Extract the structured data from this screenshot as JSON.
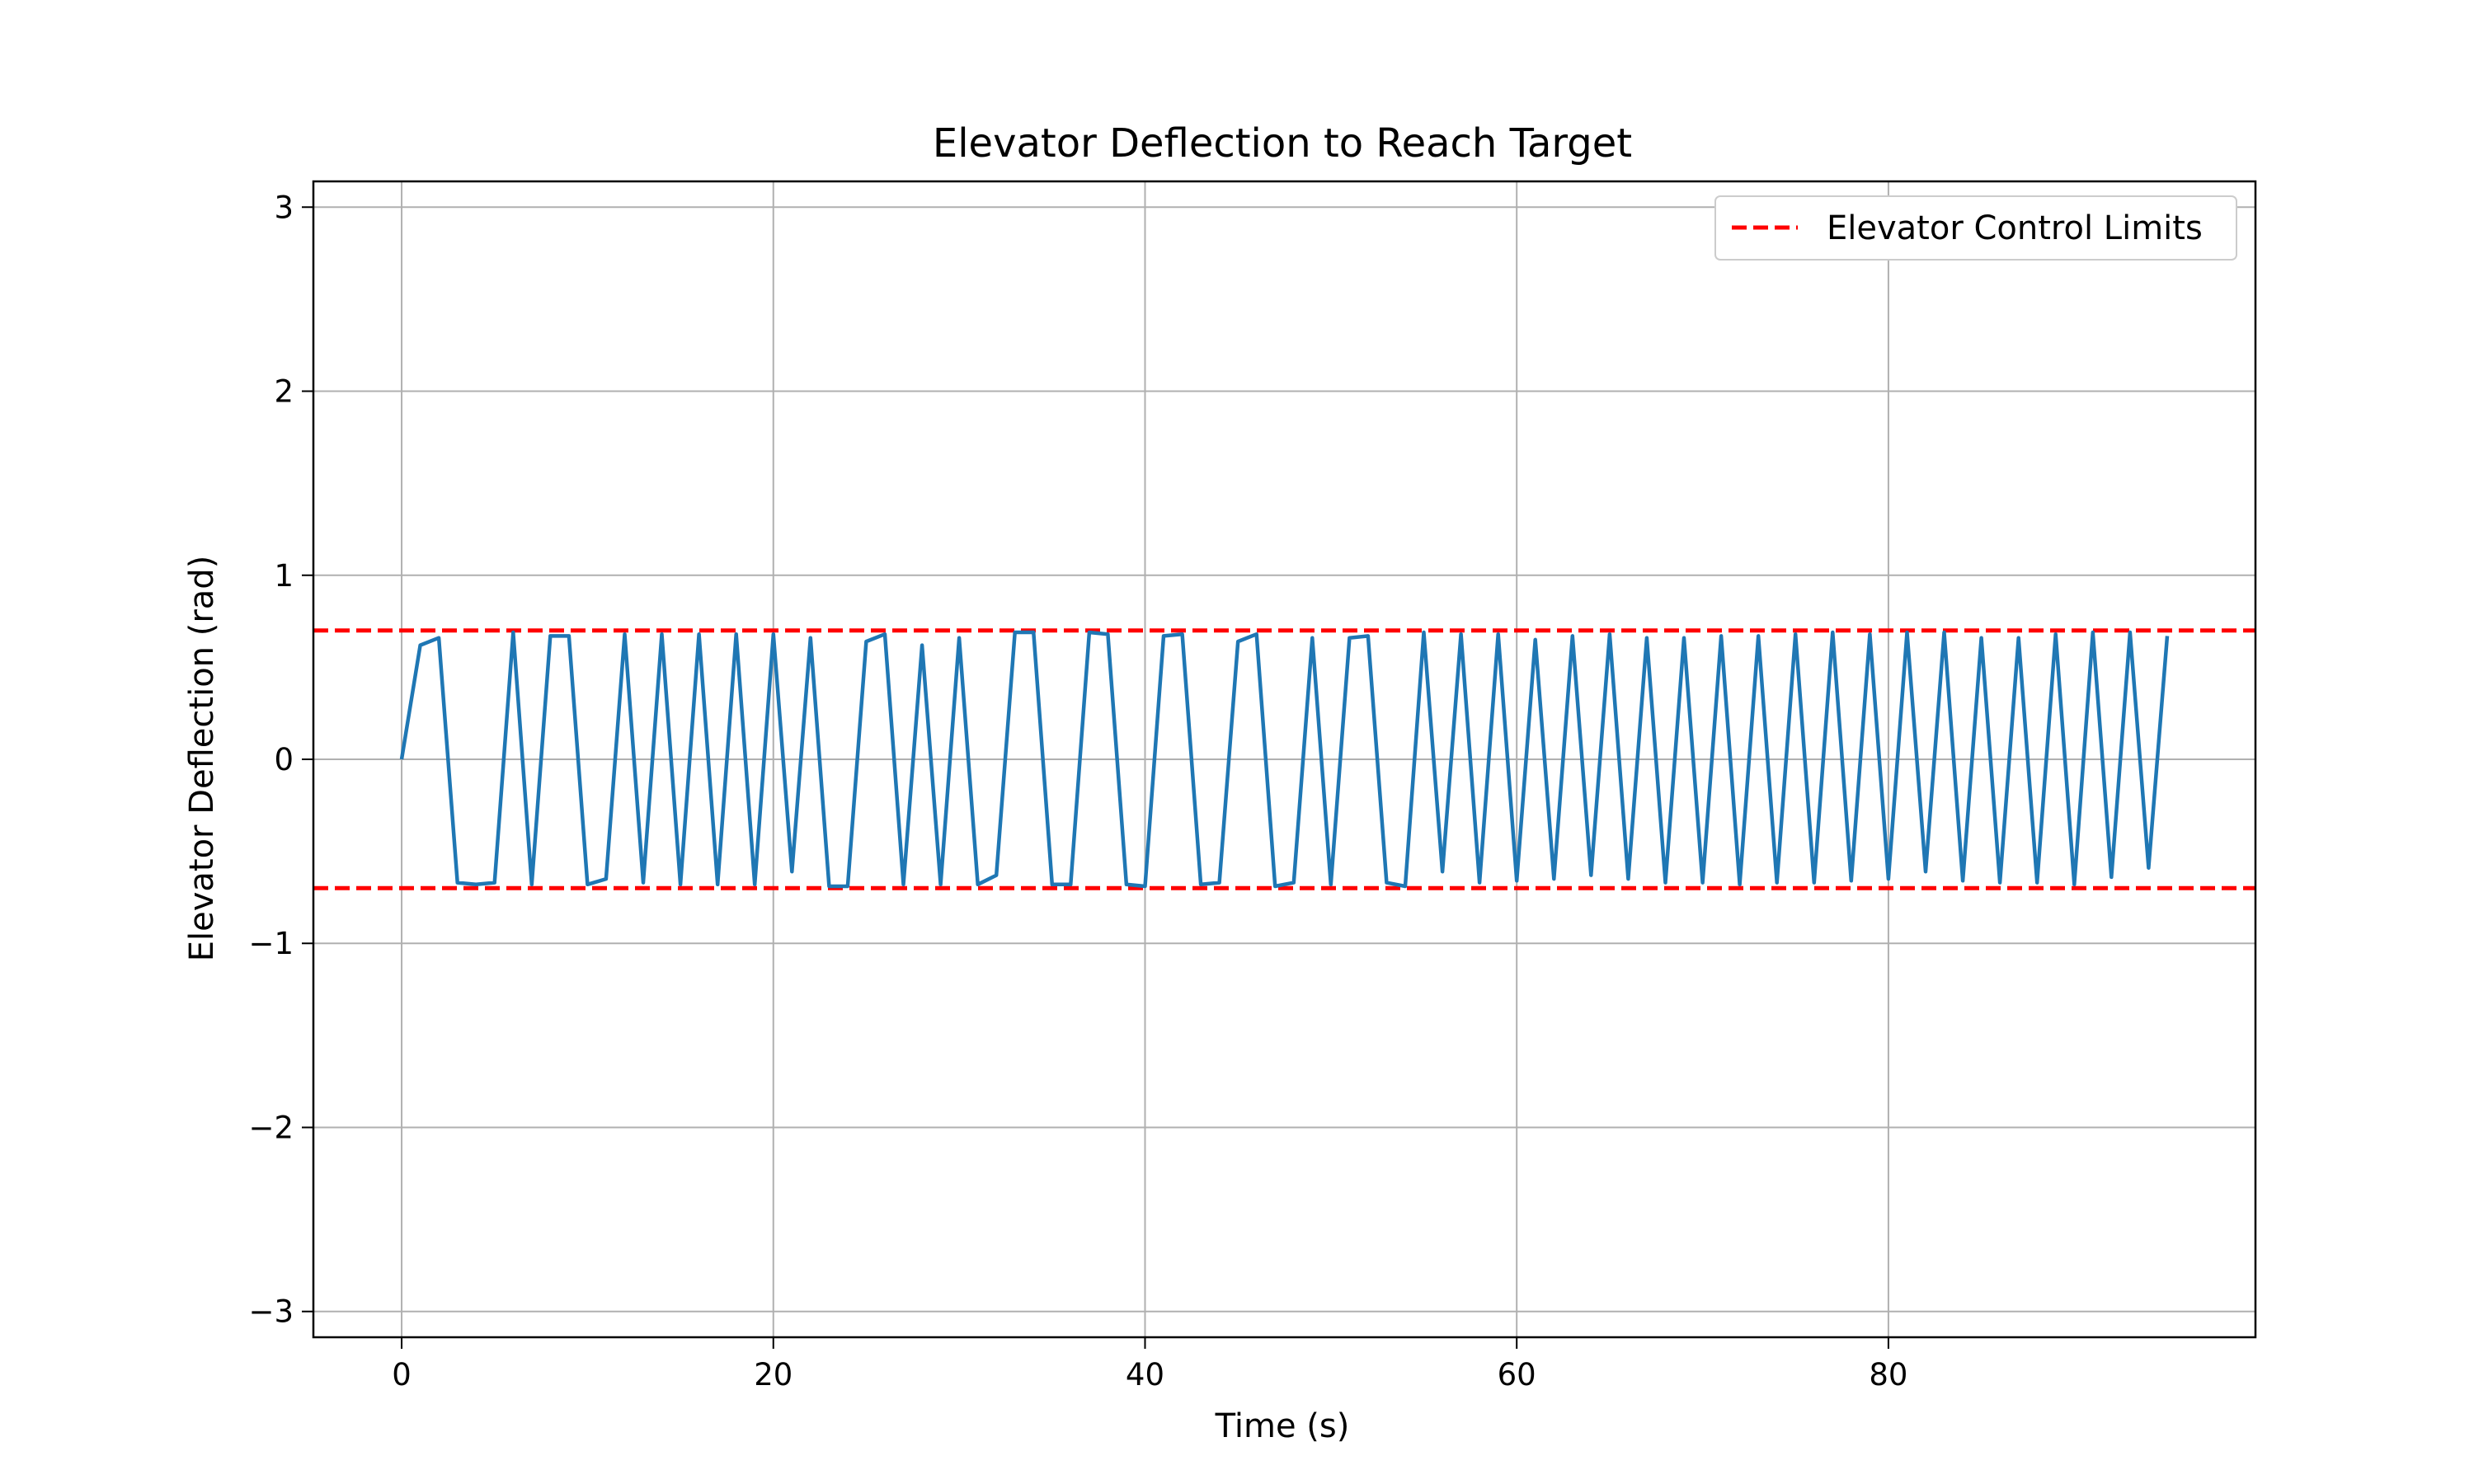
{
  "chart_data": {
    "type": "line",
    "title": "Elevator Deflection to Reach Target",
    "xlabel": "Time (s)",
    "ylabel": "Elevator Deflection (rad)",
    "xlim": [
      -4.75,
      99.75
    ],
    "ylim": [
      -3.14,
      3.14
    ],
    "xticks": [
      0,
      20,
      40,
      60,
      80
    ],
    "xtick_labels": [
      "0",
      "20",
      "40",
      "60",
      "80"
    ],
    "yticks": [
      -3,
      -2,
      -1,
      0,
      1,
      2,
      3
    ],
    "ytick_labels": [
      "−3",
      "−2",
      "−1",
      "0",
      "1",
      "2",
      "3"
    ],
    "grid": true,
    "legend_position": "top-right",
    "series": [
      {
        "color": "#1f77b4",
        "x": [
          0,
          1,
          2,
          3,
          4,
          5,
          6,
          7,
          8,
          9,
          10,
          11,
          12,
          13,
          14,
          15,
          16,
          17,
          18,
          19,
          20,
          21,
          22,
          23,
          24,
          25,
          26,
          27,
          28,
          29,
          30,
          31,
          32,
          33,
          34,
          35,
          36,
          37,
          38,
          39,
          40,
          41,
          42,
          43,
          44,
          45,
          46,
          47,
          48,
          49,
          50,
          51,
          52,
          53,
          54,
          55,
          56,
          57,
          58,
          59,
          60,
          61,
          62,
          63,
          64,
          65,
          66,
          67,
          68,
          69,
          70,
          71,
          72,
          73,
          74,
          75,
          76,
          77,
          78,
          79,
          80,
          81,
          82,
          83,
          84,
          85,
          86,
          87,
          88,
          89,
          90,
          91,
          92,
          93,
          94,
          95
        ],
        "y": [
          0,
          0.62,
          0.66,
          -0.67,
          -0.68,
          -0.67,
          0.69,
          -0.68,
          0.67,
          0.67,
          -0.68,
          -0.65,
          0.68,
          -0.67,
          0.68,
          -0.68,
          0.68,
          -0.68,
          0.68,
          -0.68,
          0.68,
          -0.61,
          0.66,
          -0.69,
          -0.69,
          0.64,
          0.68,
          -0.68,
          0.62,
          -0.68,
          0.66,
          -0.68,
          -0.63,
          0.69,
          0.69,
          -0.68,
          -0.68,
          0.69,
          0.68,
          -0.68,
          -0.69,
          0.67,
          0.68,
          -0.68,
          -0.67,
          0.64,
          0.68,
          -0.69,
          -0.67,
          0.66,
          -0.68,
          0.66,
          0.67,
          -0.67,
          -0.69,
          0.69,
          -0.61,
          0.68,
          -0.67,
          0.68,
          -0.66,
          0.65,
          -0.65,
          0.67,
          -0.63,
          0.68,
          -0.65,
          0.66,
          -0.67,
          0.66,
          -0.67,
          0.67,
          -0.68,
          0.67,
          -0.67,
          0.68,
          -0.67,
          0.69,
          -0.66,
          0.68,
          -0.65,
          0.69,
          -0.61,
          0.69,
          -0.66,
          0.66,
          -0.67,
          0.66,
          -0.67,
          0.68,
          -0.68,
          0.69,
          -0.64,
          0.69,
          -0.59,
          0.67
        ]
      }
    ],
    "reference_lines": [
      {
        "label": "Elevator Control Limits",
        "color": "#ff0000",
        "style": "dashed",
        "y": [
          0.7,
          -0.7
        ]
      }
    ]
  }
}
